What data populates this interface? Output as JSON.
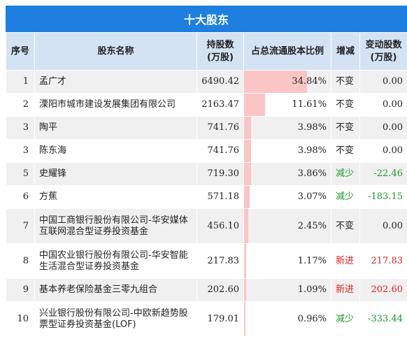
{
  "title": "十大股东",
  "headers": {
    "rank": "序号",
    "name": "股东名称",
    "shares": "持股数\n(万股)",
    "ratio": "占总流通股本比例",
    "change": "增减",
    "delta": "变动股数\n(万股)"
  },
  "rows": [
    {
      "rank": "1",
      "name": "孟广才",
      "shares": "6490.42",
      "ratio": "34.84%",
      "ratio_value": 34.84,
      "change": "不变",
      "change_type": "neutral",
      "delta": "0.00"
    },
    {
      "rank": "2",
      "name": "溧阳市城市建设发展集团有限公司",
      "shares": "2163.47",
      "ratio": "11.61%",
      "ratio_value": 11.61,
      "change": "不变",
      "change_type": "neutral",
      "delta": "0.00"
    },
    {
      "rank": "3",
      "name": "陶平",
      "shares": "741.76",
      "ratio": "3.98%",
      "ratio_value": 3.98,
      "change": "不变",
      "change_type": "neutral",
      "delta": "0.00"
    },
    {
      "rank": "3",
      "name": "陈东海",
      "shares": "741.76",
      "ratio": "3.98%",
      "ratio_value": 3.98,
      "change": "不变",
      "change_type": "neutral",
      "delta": "0.00"
    },
    {
      "rank": "5",
      "name": "史耀锋",
      "shares": "719.30",
      "ratio": "3.86%",
      "ratio_value": 3.86,
      "change": "减少",
      "change_type": "down",
      "delta": "-22.46"
    },
    {
      "rank": "6",
      "name": "方蕉",
      "shares": "571.18",
      "ratio": "3.07%",
      "ratio_value": 3.07,
      "change": "减少",
      "change_type": "down",
      "delta": "-183.15"
    },
    {
      "rank": "7",
      "name": "中国工商银行股份有限公司-华安媒体互联网混合型证券投资基金",
      "shares": "456.10",
      "ratio": "2.45%",
      "ratio_value": 2.45,
      "change": "不变",
      "change_type": "neutral",
      "delta": "0.00"
    },
    {
      "rank": "8",
      "name": "中国农业银行股份有限公司-华安智能生活混合型证券投资基金",
      "shares": "217.83",
      "ratio": "1.17%",
      "ratio_value": 1.17,
      "change": "新进",
      "change_type": "up",
      "delta": "217.83"
    },
    {
      "rank": "9",
      "name": "基本养老保险基金三零九组合",
      "shares": "202.60",
      "ratio": "1.09%",
      "ratio_value": 1.09,
      "change": "新进",
      "change_type": "up",
      "delta": "202.60"
    },
    {
      "rank": "10",
      "name": "兴业银行股份有限公司-中欧新趋势股票型证券投资基金(LOF)",
      "shares": "179.01",
      "ratio": "0.96%",
      "ratio_value": 0.96,
      "change": "减少",
      "change_type": "down",
      "delta": "-333.44"
    }
  ],
  "colors": {
    "title_bg": "#1f7fe0",
    "header_bg": "#d4e3f4",
    "bar": "#fbc5c5",
    "up": "#e02020",
    "down": "#1a9a2a"
  }
}
